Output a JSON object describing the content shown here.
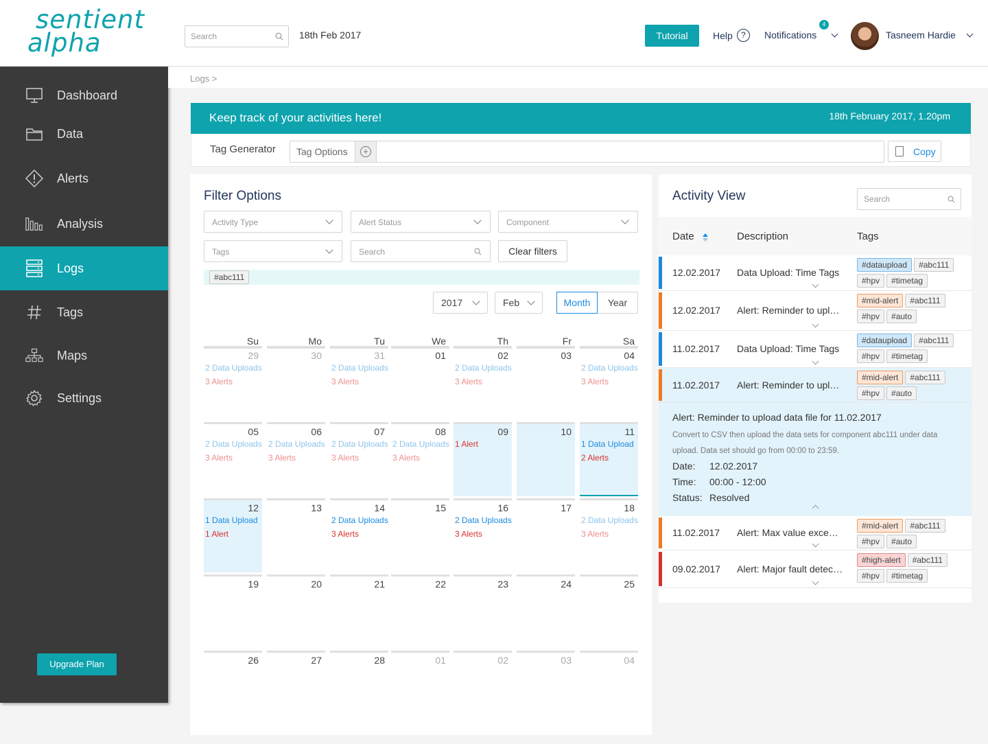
{
  "logo": {
    "line1": "sentient",
    "line2": "alpha"
  },
  "header": {
    "search_placeholder": "Search",
    "date": "18th Feb 2017",
    "tutorial": "Tutorial",
    "help": "Help",
    "notifications": "Notifications",
    "notifications_count": "4",
    "user_name": "Tasneem Hardie"
  },
  "sidebar": {
    "items": [
      {
        "label": "Dashboard",
        "icon": "monitor-icon"
      },
      {
        "label": "Data",
        "icon": "folder-icon"
      },
      {
        "label": "Alerts",
        "icon": "alert-icon"
      },
      {
        "label": "Analysis",
        "icon": "bar-chart-icon"
      },
      {
        "label": "Logs",
        "icon": "server-icon",
        "active": true
      },
      {
        "label": "Tags",
        "icon": "hash-icon"
      },
      {
        "label": "Maps",
        "icon": "sitemap-icon"
      },
      {
        "label": "Settings",
        "icon": "gear-icon"
      }
    ],
    "upgrade": "Upgrade Plan"
  },
  "breadcrumb": "Logs >",
  "banner": {
    "title": "Keep track of your activities here!",
    "timestamp": "18th February 2017, 1.20pm"
  },
  "tag_generator": {
    "label": "Tag Generator",
    "options": "Tag Options",
    "copy": "Copy"
  },
  "filter": {
    "title": "Filter Options",
    "activity_type": "Activity Type",
    "alert_status": "Alert Status",
    "component": "Component",
    "tags": "Tags",
    "search": "Search",
    "clear": "Clear filters",
    "active_tag": "#abc111",
    "year": "2017",
    "month": "Feb",
    "view_month": "Month",
    "view_year": "Year"
  },
  "calendar": {
    "days": [
      "Su",
      "Mo",
      "Tu",
      "We",
      "Th",
      "Fr",
      "Sa"
    ],
    "weeks": [
      [
        {
          "n": "29",
          "muted": true,
          "up": "2 Data Uploads",
          "al": "3 Alerts",
          "faded": true
        },
        {
          "n": "30",
          "muted": true
        },
        {
          "n": "31",
          "muted": true,
          "up": "2 Data Uploads",
          "al": "3 Alerts",
          "faded": true
        },
        {
          "n": "01"
        },
        {
          "n": "02",
          "up": "2 Data Uploads",
          "al": "3 Alerts",
          "faded": true
        },
        {
          "n": "03"
        },
        {
          "n": "04",
          "up": "2 Data Uploads",
          "al": "3 Alerts",
          "faded": true
        }
      ],
      [
        {
          "n": "05",
          "up": "2 Data Uploads",
          "al": "3 Alerts",
          "faded": true
        },
        {
          "n": "06",
          "up": "2 Data Uploads",
          "al": "3 Alerts",
          "faded": true
        },
        {
          "n": "07",
          "up": "2 Data Uploads",
          "al": "3 Alerts",
          "faded": true
        },
        {
          "n": "08",
          "up": "2 Data Uploads",
          "al": "3 Alerts",
          "faded": true
        },
        {
          "n": "09",
          "al_top": "1 Alert",
          "hl": true
        },
        {
          "n": "10",
          "hl": true
        },
        {
          "n": "11",
          "up": "1 Data Upload",
          "al": "2 Alerts",
          "hl": true,
          "selected": true
        }
      ],
      [
        {
          "n": "12",
          "up": "1 Data Upload",
          "al": "1 Alert",
          "hl": true
        },
        {
          "n": "13"
        },
        {
          "n": "14",
          "up": "2 Data Uploads",
          "al": "3 Alerts"
        },
        {
          "n": "15"
        },
        {
          "n": "16",
          "up": "2 Data Uploads",
          "al": "3 Alerts"
        },
        {
          "n": "17"
        },
        {
          "n": "18",
          "up": "2 Data Uploads",
          "al": "3 Alerts",
          "faded": true
        }
      ],
      [
        {
          "n": "19"
        },
        {
          "n": "20"
        },
        {
          "n": "21"
        },
        {
          "n": "22"
        },
        {
          "n": "23"
        },
        {
          "n": "24"
        },
        {
          "n": "25"
        }
      ],
      [
        {
          "n": "26"
        },
        {
          "n": "27"
        },
        {
          "n": "28"
        },
        {
          "n": "01",
          "muted": true
        },
        {
          "n": "02",
          "muted": true
        },
        {
          "n": "03",
          "muted": true
        },
        {
          "n": "04",
          "muted": true
        }
      ]
    ]
  },
  "activity": {
    "title": "Activity View",
    "search_placeholder": "Search",
    "col_date": "Date",
    "col_desc": "Description",
    "col_tags": "Tags",
    "rows": [
      {
        "date": "12.02.2017",
        "desc": "Data Upload: Time Tags",
        "color": "#1a8ae0",
        "tags": [
          {
            "t": "#dataupload",
            "k": "blue"
          },
          {
            "t": "#abc111"
          },
          {
            "t": "#hpv"
          },
          {
            "t": "#timetag"
          }
        ]
      },
      {
        "date": "12.02.2017",
        "desc": "Alert: Reminder to upload",
        "color": "#f07a1e",
        "tags": [
          {
            "t": "#mid-alert",
            "k": "orange"
          },
          {
            "t": "#abc111"
          },
          {
            "t": "#hpv"
          },
          {
            "t": "#auto"
          }
        ]
      },
      {
        "date": "11.02.2017",
        "desc": "Data Upload: Time Tags",
        "color": "#1a8ae0",
        "tags": [
          {
            "t": "#dataupload",
            "k": "blue"
          },
          {
            "t": "#abc111"
          },
          {
            "t": "#hpv"
          },
          {
            "t": "#timetag"
          }
        ]
      },
      {
        "date": "11.02.2017",
        "desc": "Alert: Reminder to upload",
        "color": "#f07a1e",
        "open": true,
        "tags": [
          {
            "t": "#mid-alert",
            "k": "orange"
          },
          {
            "t": "#abc111"
          },
          {
            "t": "#hpv"
          },
          {
            "t": "#auto"
          }
        ]
      },
      {
        "date": "11.02.2017",
        "desc": "Alert: Max value exceeded",
        "color": "#f07a1e",
        "tags": [
          {
            "t": "#mid-alert",
            "k": "orange"
          },
          {
            "t": "#abc111"
          },
          {
            "t": "#hpv"
          },
          {
            "t": "#auto"
          }
        ]
      },
      {
        "date": "09.02.2017",
        "desc": "Alert: Major fault detected",
        "color": "#d9302c",
        "tags": [
          {
            "t": "#high-alert",
            "k": "red"
          },
          {
            "t": "#abc111"
          },
          {
            "t": "#hpv"
          },
          {
            "t": "#timetag"
          }
        ]
      }
    ],
    "detail": {
      "heading": "Alert: Reminder to upload data file for 11.02.2017",
      "body": "Convert to CSV then upload the data sets for component abc111 under data upload. Data set should go from 00:00 to 23:59.",
      "date_label": "Date:",
      "date_value": "12.02.2017",
      "time_label": "Time:",
      "time_value": "00:00 - 12:00",
      "status_label": "Status:",
      "status_value": "Resolved"
    }
  }
}
